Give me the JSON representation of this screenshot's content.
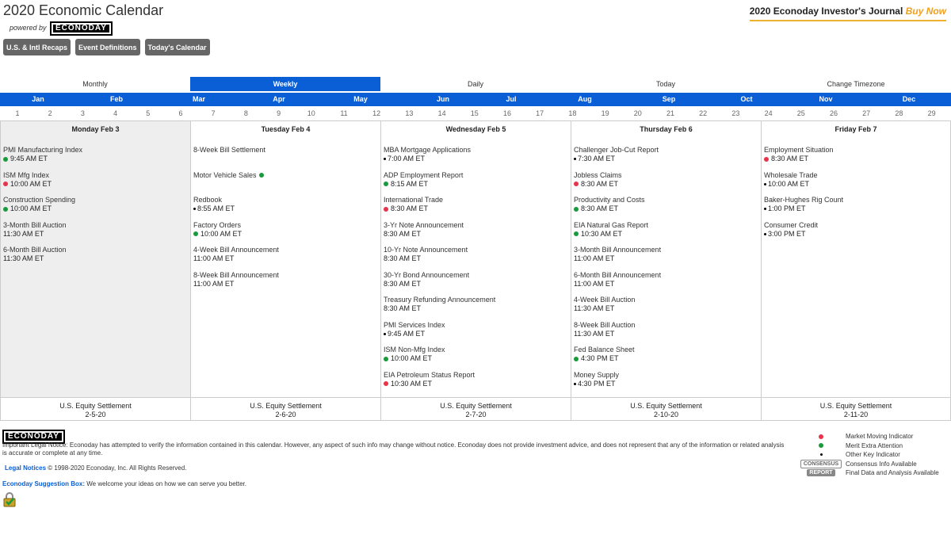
{
  "header": {
    "title": "2020 Economic Calendar",
    "powered_by": "powered by",
    "logo_text": "ECONODAY",
    "journal": "2020 Econoday Investor's Journal",
    "buy_now": "Buy Now"
  },
  "buttons": [
    "U.S. & Intl Recaps",
    "Event Definitions",
    "Today's Calendar"
  ],
  "view_tabs": [
    {
      "label": "Monthly",
      "active": false
    },
    {
      "label": "Weekly",
      "active": true
    },
    {
      "label": "Daily",
      "active": false
    },
    {
      "label": "Today",
      "active": false
    },
    {
      "label": "Change Timezone",
      "active": false
    }
  ],
  "months": [
    "Jan",
    "Feb",
    "Mar",
    "Apr",
    "May",
    "Jun",
    "Jul",
    "Aug",
    "Sep",
    "Oct",
    "Nov",
    "Dec"
  ],
  "weeks": [
    "1",
    "2",
    "3",
    "4",
    "5",
    "6",
    "7",
    "8",
    "9",
    "10",
    "11",
    "12",
    "13",
    "14",
    "15",
    "16",
    "17",
    "18",
    "19",
    "20",
    "21",
    "22",
    "23",
    "24",
    "25",
    "26",
    "27",
    "28",
    "29"
  ],
  "days": [
    {
      "title": "Monday Feb 3",
      "events": [
        {
          "name": "PMI Manufacturing Index",
          "time": "9:45 AM ET",
          "dot": "green"
        },
        {
          "name": "ISM Mfg Index",
          "time": "10:00 AM ET",
          "dot": "red"
        },
        {
          "name": "Construction Spending",
          "time": "10:00 AM ET",
          "dot": "green"
        },
        {
          "name": "3-Month Bill Auction",
          "time": "11:30 AM ET",
          "dot": ""
        },
        {
          "name": "6-Month Bill Auction",
          "time": "11:30 AM ET",
          "dot": ""
        }
      ],
      "settlement": "U.S. Equity Settlement",
      "settlement_date": "2-5-20"
    },
    {
      "title": "Tuesday Feb 4",
      "events": [
        {
          "name": "8-Week Bill Settlement",
          "time": "",
          "dot": ""
        },
        {
          "name": "Motor Vehicle Sales",
          "time": "",
          "dot": "green",
          "dot_after": true
        },
        {
          "name": "Redbook",
          "time": "8:55 AM ET",
          "dot": "black"
        },
        {
          "name": "Factory Orders",
          "time": "10:00 AM ET",
          "dot": "green"
        },
        {
          "name": "4-Week Bill Announcement",
          "time": "11:00 AM ET",
          "dot": ""
        },
        {
          "name": "8-Week Bill Announcement",
          "time": "11:00 AM ET",
          "dot": ""
        }
      ],
      "settlement": "U.S. Equity Settlement",
      "settlement_date": "2-6-20"
    },
    {
      "title": "Wednesday Feb 5",
      "events": [
        {
          "name": "MBA Mortgage Applications",
          "time": "7:00 AM ET",
          "dot": "black"
        },
        {
          "name": "ADP Employment Report",
          "time": "8:15 AM ET",
          "dot": "green"
        },
        {
          "name": "International Trade",
          "time": "8:30 AM ET",
          "dot": "red"
        },
        {
          "name": "3-Yr Note Announcement",
          "time": "8:30 AM ET",
          "dot": ""
        },
        {
          "name": "10-Yr Note Announcement",
          "time": "8:30 AM ET",
          "dot": ""
        },
        {
          "name": "30-Yr Bond Announcement",
          "time": "8:30 AM ET",
          "dot": ""
        },
        {
          "name": "Treasury Refunding Announcement",
          "time": "8:30 AM ET",
          "dot": ""
        },
        {
          "name": "PMI Services Index",
          "time": "9:45 AM ET",
          "dot": "black"
        },
        {
          "name": "ISM Non-Mfg Index",
          "time": "10:00 AM ET",
          "dot": "green"
        },
        {
          "name": "EIA Petroleum Status Report",
          "time": "10:30 AM ET",
          "dot": "red"
        }
      ],
      "settlement": "U.S. Equity Settlement",
      "settlement_date": "2-7-20"
    },
    {
      "title": "Thursday Feb 6",
      "events": [
        {
          "name": "Challenger Job-Cut Report",
          "time": "7:30 AM ET",
          "dot": "black"
        },
        {
          "name": "Jobless Claims",
          "time": "8:30 AM ET",
          "dot": "red"
        },
        {
          "name": "Productivity and Costs",
          "time": "8:30 AM ET",
          "dot": "green"
        },
        {
          "name": "EIA Natural Gas Report",
          "time": "10:30 AM ET",
          "dot": "green"
        },
        {
          "name": "3-Month Bill Announcement",
          "time": "11:00 AM ET",
          "dot": ""
        },
        {
          "name": "6-Month Bill Announcement",
          "time": "11:00 AM ET",
          "dot": ""
        },
        {
          "name": "4-Week Bill Auction",
          "time": "11:30 AM ET",
          "dot": ""
        },
        {
          "name": "8-Week Bill Auction",
          "time": "11:30 AM ET",
          "dot": ""
        },
        {
          "name": "Fed Balance Sheet",
          "time": "4:30 PM ET",
          "dot": "green"
        },
        {
          "name": "Money Supply",
          "time": "4:30 PM ET",
          "dot": "black"
        }
      ],
      "settlement": "U.S. Equity Settlement",
      "settlement_date": "2-10-20"
    },
    {
      "title": "Friday Feb 7",
      "events": [
        {
          "name": "Employment Situation",
          "time": "8:30 AM ET",
          "dot": "red"
        },
        {
          "name": "Wholesale Trade",
          "time": "10:00 AM ET",
          "dot": "black"
        },
        {
          "name": "Baker-Hughes Rig Count",
          "time": "1:00 PM ET",
          "dot": "black"
        },
        {
          "name": "Consumer Credit",
          "time": "3:00 PM ET",
          "dot": "black"
        }
      ],
      "settlement": "U.S. Equity Settlement",
      "settlement_date": "2-11-20"
    }
  ],
  "footer": {
    "legal": "Important Legal Notice: Econoday has attempted to verify the information contained in this calendar. However, any aspect of such info may change without notice. Econoday does not provide investment advice, and does not represent that any of the information or related analysis is accurate or complete at any time.",
    "legal_link": "Legal Notices",
    "copyright": "© 1998-2020 Econoday, Inc. All Rights Reserved.",
    "suggest_link": "Econoday Suggestion Box:",
    "suggest_text": "We welcome your ideas on how we can serve you better."
  },
  "legend": [
    {
      "mark": "red-dot",
      "label": "Market Moving Indicator"
    },
    {
      "mark": "green-dot",
      "label": "Merit Extra Attention"
    },
    {
      "mark": "black-dot",
      "label": "Other Key Indicator"
    },
    {
      "mark": "CONSENSUS",
      "label": "Consensus Info Available"
    },
    {
      "mark": "REPORT",
      "label": "Final Data and Analysis Available"
    }
  ],
  "colors": {
    "accent": "#0a5fd6",
    "red": "#e8334a",
    "green": "#1a9a3a",
    "gold": "#f0b030"
  }
}
